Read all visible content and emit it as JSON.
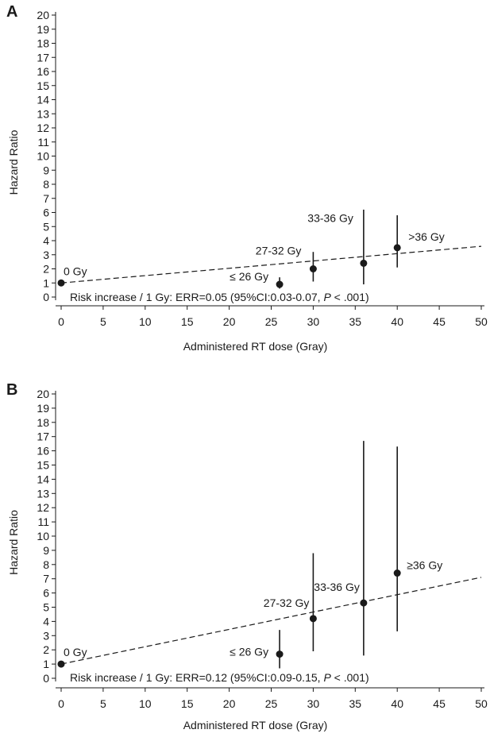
{
  "chart_data": [
    {
      "panel": "A",
      "type": "scatter",
      "xlabel": "Administered RT dose (Gray)",
      "ylabel": "Hazard Ratio",
      "xlim": [
        0,
        50
      ],
      "ylim": [
        0,
        20
      ],
      "x_ticks": [
        0,
        5,
        10,
        15,
        20,
        25,
        30,
        35,
        40,
        45,
        50
      ],
      "y_ticks": [
        0,
        1,
        2,
        3,
        4,
        5,
        6,
        7,
        8,
        9,
        10,
        11,
        12,
        13,
        14,
        15,
        16,
        17,
        18,
        19,
        20
      ],
      "points": [
        {
          "label": "0 Gy",
          "x": 0,
          "y": 1.0,
          "ci": null
        },
        {
          "label": "≤ 26 Gy",
          "x": 26,
          "y": 0.9,
          "ci": [
            0.6,
            1.4
          ]
        },
        {
          "label": "27-32 Gy",
          "x": 30,
          "y": 2.0,
          "ci": [
            1.1,
            3.2
          ]
        },
        {
          "label": "33-36 Gy",
          "x": 36,
          "y": 2.4,
          "ci": [
            0.9,
            6.2
          ]
        },
        {
          "label": ">36  Gy",
          "x": 40,
          "y": 3.5,
          "ci": [
            2.1,
            5.8
          ]
        }
      ],
      "trend_line": {
        "x": [
          0,
          50
        ],
        "y": [
          1.0,
          3.6
        ],
        "style": "dashed"
      },
      "annotation": {
        "prefix": "Risk increase / 1 Gy: ERR=0.05 (95%CI:0.03-0.07, ",
        "p_symbol": "P",
        "suffix": " < .001)"
      }
    },
    {
      "panel": "B",
      "type": "scatter",
      "xlabel": "Administered RT dose (Gray)",
      "ylabel": "Hazard Ratio",
      "xlim": [
        0,
        50
      ],
      "ylim": [
        0,
        20
      ],
      "x_ticks": [
        0,
        5,
        10,
        15,
        20,
        25,
        30,
        35,
        40,
        45,
        50
      ],
      "y_ticks": [
        0,
        1,
        2,
        3,
        4,
        5,
        6,
        7,
        8,
        9,
        10,
        11,
        12,
        13,
        14,
        15,
        16,
        17,
        18,
        19,
        20
      ],
      "points": [
        {
          "label": "0 Gy",
          "x": 0,
          "y": 1.0,
          "ci": null
        },
        {
          "label": "≤ 26 Gy",
          "x": 26,
          "y": 1.7,
          "ci": [
            0.7,
            3.4
          ]
        },
        {
          "label": "27-32 Gy",
          "x": 30,
          "y": 4.2,
          "ci": [
            1.9,
            8.8
          ]
        },
        {
          "label": "33-36 Gy",
          "x": 36,
          "y": 5.3,
          "ci": [
            1.6,
            16.7
          ]
        },
        {
          "label": "≥36  Gy",
          "x": 40,
          "y": 7.4,
          "ci": [
            3.3,
            16.3
          ]
        }
      ],
      "trend_line": {
        "x": [
          0,
          50
        ],
        "y": [
          1.0,
          7.1
        ],
        "style": "dashed"
      },
      "annotation": {
        "prefix": "Risk increase / 1 Gy: ERR=0.12 (95%CI:0.09-0.15, ",
        "p_symbol": "P",
        "suffix": " < .001)"
      }
    }
  ]
}
